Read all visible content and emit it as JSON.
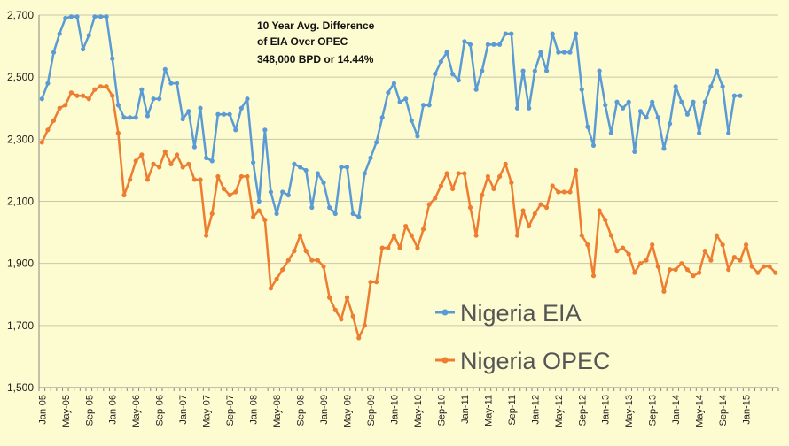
{
  "chart_data": {
    "type": "line",
    "title": "",
    "xlabel": "",
    "ylabel": "",
    "ylim": [
      1500,
      2700
    ],
    "yticks": [
      1500,
      1700,
      1900,
      2100,
      2300,
      2500,
      2700
    ],
    "ytick_labels": [
      "1,500",
      "1,700",
      "1,900",
      "2,100",
      "2,300",
      "2,500",
      "2,700"
    ],
    "x_start": "Jan-05",
    "x_count": 126,
    "xtick_labels": [
      "Jan-05",
      "May-05",
      "Sep-05",
      "Jan-06",
      "May-06",
      "Sep-06",
      "Jan-07",
      "May-07",
      "Sep-07",
      "Jan-08",
      "May-08",
      "Sep-08",
      "Jan-09",
      "May-09",
      "Sep-09",
      "Jan-10",
      "May-10",
      "Sep-10",
      "Jan-11",
      "May-11",
      "Sep-11",
      "Jan-12",
      "May-12",
      "Sep-12",
      "Jan-13",
      "May-13",
      "Sep-13",
      "Jan-14",
      "May-14",
      "Sep-14",
      "Jan-15"
    ],
    "grid": "horizontal",
    "legend_position": "bottom-right",
    "annotation": [
      "10 Year Avg. Difference",
      "of EIA Over OPEC",
      "348,000 BPD or 14.44%"
    ],
    "series": [
      {
        "name": "Nigeria EIA",
        "color": "#5b9bd5",
        "values": [
          2430,
          2480,
          2580,
          2640,
          2690,
          2695,
          2695,
          2590,
          2635,
          2695,
          2695,
          2695,
          2560,
          2410,
          2370,
          2370,
          2370,
          2460,
          2375,
          2430,
          2430,
          2525,
          2480,
          2480,
          2365,
          2390,
          2275,
          2400,
          2240,
          2230,
          2380,
          2380,
          2380,
          2330,
          2400,
          2430,
          2225,
          2100,
          2330,
          2130,
          2060,
          2130,
          2120,
          2220,
          2210,
          2200,
          2080,
          2190,
          2160,
          2080,
          2060,
          2210,
          2210,
          2060,
          2050,
          2190,
          2240,
          2290,
          2370,
          2450,
          2480,
          2420,
          2430,
          2360,
          2310,
          2410,
          2410,
          2510,
          2550,
          2580,
          2510,
          2490,
          2615,
          2605,
          2460,
          2520,
          2605,
          2605,
          2605,
          2640,
          2640,
          2400,
          2520,
          2400,
          2520,
          2580,
          2520,
          2640,
          2580,
          2580,
          2580,
          2640,
          2460,
          2340,
          2280,
          2520,
          2410,
          2320,
          2420,
          2400,
          2420,
          2260,
          2390,
          2370,
          2420,
          2370,
          2270,
          2350,
          2470,
          2420,
          2380,
          2420,
          2320,
          2420,
          2470,
          2520,
          2470,
          2320,
          2440,
          2440,
          null,
          null,
          null,
          null,
          null,
          null
        ]
      },
      {
        "name": "Nigeria OPEC",
        "color": "#ed7d31",
        "values": [
          2290,
          2330,
          2360,
          2400,
          2410,
          2450,
          2440,
          2440,
          2430,
          2460,
          2470,
          2470,
          2440,
          2320,
          2120,
          2170,
          2230,
          2250,
          2170,
          2220,
          2210,
          2260,
          2220,
          2250,
          2210,
          2220,
          2170,
          2170,
          1990,
          2060,
          2180,
          2140,
          2120,
          2130,
          2180,
          2180,
          2050,
          2070,
          2040,
          1820,
          1850,
          1880,
          1910,
          1940,
          1990,
          1940,
          1910,
          1910,
          1890,
          1790,
          1750,
          1720,
          1790,
          1730,
          1660,
          1700,
          1840,
          1840,
          1950,
          1950,
          1990,
          1950,
          2020,
          1990,
          1950,
          2010,
          2090,
          2110,
          2150,
          2190,
          2140,
          2190,
          2190,
          2080,
          1990,
          2120,
          2180,
          2140,
          2180,
          2220,
          2160,
          1990,
          2070,
          2020,
          2060,
          2090,
          2080,
          2150,
          2130,
          2130,
          2130,
          2200,
          1990,
          1960,
          1860,
          2070,
          2040,
          1990,
          1940,
          1950,
          1930,
          1870,
          1900,
          1910,
          1960,
          1890,
          1810,
          1880,
          1880,
          1900,
          1880,
          1860,
          1870,
          1940,
          1910,
          1990,
          1960,
          1880,
          1920,
          1910,
          1960,
          1890,
          1870,
          1890,
          1890,
          1870
        ]
      }
    ]
  }
}
